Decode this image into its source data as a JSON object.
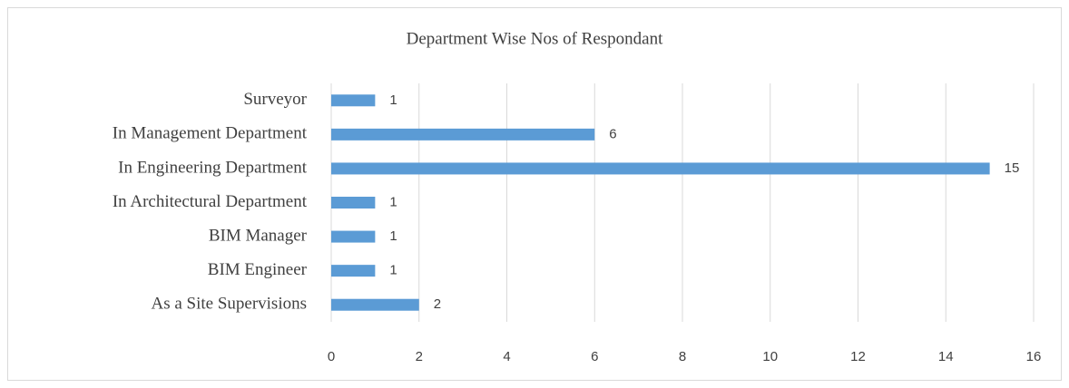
{
  "chart_data": {
    "type": "barh",
    "title": "Department Wise Nos of Respondant",
    "categories": [
      "As a Site Supervisions",
      "BIM Engineer",
      "BIM Manager",
      "In Architectural Department",
      "In Engineering Department",
      "In Management Department",
      "Surveyor"
    ],
    "values": [
      2,
      1,
      1,
      1,
      15,
      6,
      1
    ],
    "color": "#5b9bd5",
    "xlim": [
      0,
      16
    ],
    "xticks": [
      0,
      2,
      4,
      6,
      8,
      10,
      12,
      14,
      16
    ],
    "grid": true
  }
}
